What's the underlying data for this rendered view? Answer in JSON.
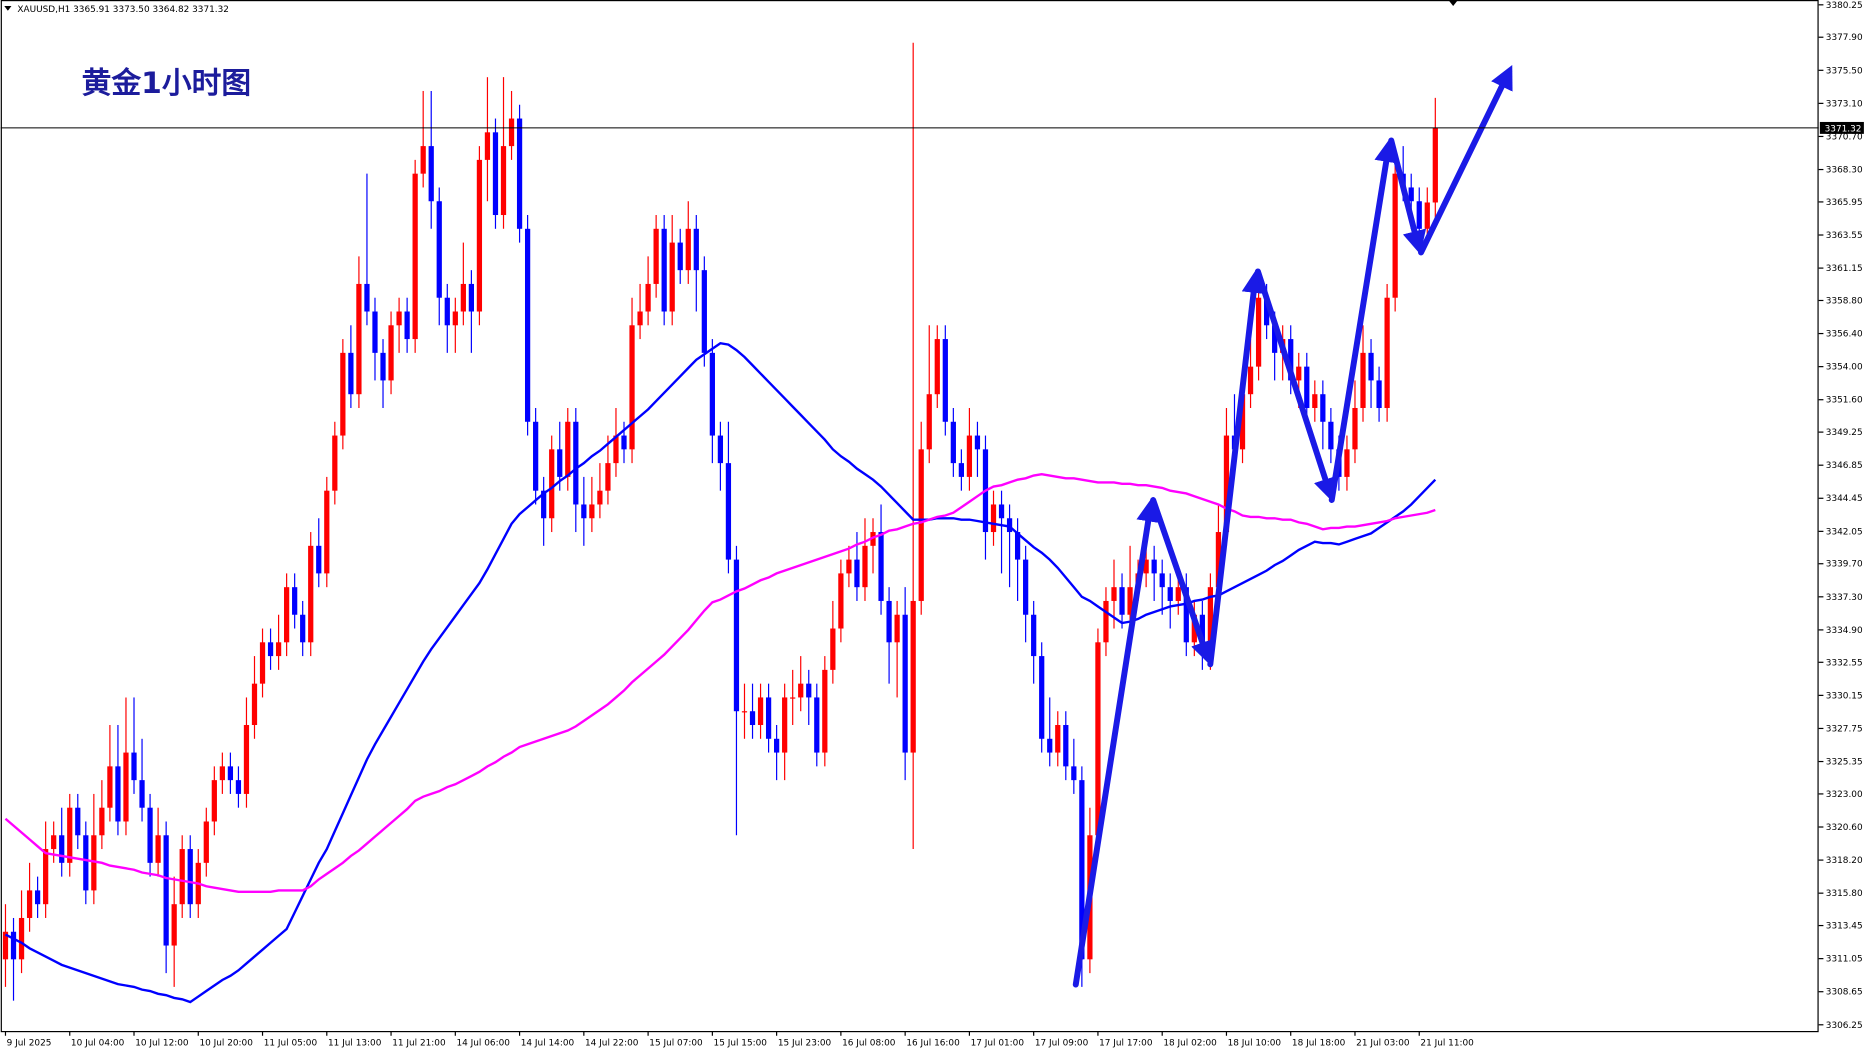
{
  "chart_data": {
    "type": "candlestick",
    "title": "黄金1小时图",
    "header": "XAUUSD,H1  3365.91 3373.50 3364.82 3371.32",
    "categories": [
      "9 Jul 2025",
      null,
      null,
      null,
      null,
      null,
      null,
      null,
      "10 Jul 04:00",
      null,
      null,
      null,
      null,
      null,
      null,
      null,
      "10 Jul 12:00",
      null,
      null,
      null,
      null,
      null,
      null,
      null,
      "10 Jul 20:00",
      null,
      null,
      null,
      null,
      null,
      null,
      null,
      "11 Jul 05:00",
      null,
      null,
      null,
      null,
      null,
      null,
      null,
      "11 Jul 13:00",
      null,
      null,
      null,
      null,
      null,
      null,
      null,
      "11 Jul 21:00",
      null,
      null,
      null,
      null,
      null,
      null,
      null,
      "14 Jul 06:00",
      null,
      null,
      null,
      null,
      null,
      null,
      null,
      "14 Jul 14:00",
      null,
      null,
      null,
      null,
      null,
      null,
      null,
      "14 Jul 22:00",
      null,
      null,
      null,
      null,
      null,
      null,
      null,
      "15 Jul 07:00",
      null,
      null,
      null,
      null,
      null,
      null,
      null,
      "15 Jul 15:00",
      null,
      null,
      null,
      null,
      null,
      null,
      null,
      "15 Jul 23:00",
      null,
      null,
      null,
      null,
      null,
      null,
      null,
      "16 Jul 08:00",
      null,
      null,
      null,
      null,
      null,
      null,
      null,
      "16 Jul 16:00",
      null,
      null,
      null,
      null,
      null,
      null,
      null,
      "17 Jul 01:00",
      null,
      null,
      null,
      null,
      null,
      null,
      null,
      "17 Jul 09:00",
      null,
      null,
      null,
      null,
      null,
      null,
      null,
      "17 Jul 17:00",
      null,
      null,
      null,
      null,
      null,
      null,
      null,
      "18 Jul 02:00",
      null,
      null,
      null,
      null,
      null,
      null,
      null,
      "18 Jul 10:00",
      null,
      null,
      null,
      null,
      null,
      null,
      null,
      "18 Jul 18:00",
      null,
      null,
      null,
      null,
      null,
      null,
      null,
      "21 Jul 03:00",
      null,
      null,
      null,
      null,
      null,
      null,
      null,
      "21 Jul 11:00",
      null,
      null
    ],
    "open": [
      3311,
      3313,
      3311,
      3314,
      3316,
      3315,
      3319,
      3320,
      3318,
      3322,
      3320,
      3316,
      3320,
      3322,
      3325,
      3321,
      3326,
      3324,
      3322,
      3318,
      3320,
      3312,
      3315,
      3319,
      3315,
      3318,
      3321,
      3324,
      3325,
      3324,
      3323,
      3328,
      3331,
      3334,
      3333,
      3334,
      3338,
      3336,
      3334,
      3341,
      3339,
      3345,
      3349,
      3355,
      3352,
      3360,
      3358,
      3355,
      3353,
      3357,
      3358,
      3356,
      3368,
      3370,
      3366,
      3359,
      3357,
      3358,
      3360,
      3358,
      3369,
      3371,
      3365,
      3370,
      3372,
      3364,
      3350,
      3345,
      3343,
      3348,
      3346,
      3350,
      3344,
      3343,
      3344,
      3345,
      3347,
      3349,
      3348,
      3357,
      3358,
      3360,
      3364,
      3358,
      3363,
      3361,
      3364,
      3361,
      3355,
      3349,
      3347,
      3340,
      3329,
      3329,
      3328,
      3330,
      3327,
      3326,
      3330,
      3330,
      3331,
      3330,
      3326,
      3332,
      3335,
      3339,
      3340,
      3338,
      3341,
      3342,
      3337,
      3334,
      3336,
      3326,
      3337,
      3348,
      3352,
      3356,
      3350,
      3347,
      3346,
      3349,
      3348,
      3342,
      3344,
      3343,
      3342,
      3340,
      3336,
      3333,
      3327,
      3326,
      3328,
      3325,
      3324,
      3311,
      3320,
      3334,
      3337,
      3338,
      3336,
      3338,
      3339,
      3340,
      3339,
      3338,
      3337,
      3338,
      3334,
      3336,
      3334,
      3338,
      3342,
      3349,
      3348,
      3352,
      3354,
      3359,
      3357,
      3355,
      3356,
      3353,
      3354,
      3351,
      3352,
      3350,
      3348,
      3346,
      3348,
      3351,
      3355,
      3353,
      3351,
      3359,
      3368,
      3367,
      3366,
      3364,
      3365.91
    ],
    "high": [
      3315,
      3314,
      3316,
      3318,
      3317,
      3321,
      3321,
      3322,
      3323,
      3323,
      3321,
      3323,
      3324,
      3328,
      3328,
      3330,
      3330,
      3327,
      3323,
      3322,
      3321,
      3317,
      3320,
      3320,
      3319,
      3322,
      3325,
      3326,
      3326,
      3325,
      3330,
      3333,
      3335,
      3335,
      3336,
      3339,
      3339,
      3337,
      3342,
      3343,
      3346,
      3350,
      3356,
      3357,
      3362,
      3368,
      3359,
      3356,
      3358,
      3359,
      3359,
      3369,
      3374,
      3374,
      3367,
      3360,
      3359,
      3363,
      3361,
      3370,
      3375,
      3372,
      3375,
      3374,
      3373,
      3365,
      3351,
      3346,
      3349,
      3350,
      3351,
      3351,
      3346,
      3346,
      3347,
      3349,
      3351,
      3350,
      3359,
      3360,
      3362,
      3365,
      3365,
      3365,
      3364,
      3366,
      3365,
      3362,
      3356,
      3350,
      3350,
      3341,
      3331,
      3331,
      3331,
      3331,
      3328,
      3331,
      3332,
      3333,
      3332,
      3331,
      3333,
      3337,
      3340,
      3341,
      3342,
      3343,
      3343,
      3344,
      3338,
      3337,
      3338,
      3377.5,
      3350,
      3357,
      3357,
      3357,
      3351,
      3348,
      3351,
      3350,
      3349,
      3345,
      3345,
      3344,
      3343,
      3341,
      3337,
      3334,
      3330,
      3329,
      3329,
      3327,
      3325,
      3322,
      3335,
      3338,
      3340,
      3339,
      3341,
      3340,
      3342,
      3341,
      3340,
      3339,
      3339,
      3339,
      3337,
      3337,
      3339,
      3344,
      3351,
      3352,
      3353,
      3356,
      3360,
      3360,
      3358,
      3357,
      3357,
      3355,
      3355,
      3353,
      3353,
      3351,
      3349,
      3349,
      3353,
      3357,
      3356,
      3354,
      3360,
      3369,
      3370,
      3368,
      3367,
      3367,
      3373.5
    ],
    "low": [
      3309,
      3308,
      3310,
      3313,
      3314,
      3314,
      3318,
      3317,
      3317,
      3319,
      3315,
      3315,
      3319,
      3321,
      3320,
      3320,
      3323,
      3321,
      3317,
      3317,
      3310,
      3309,
      3314,
      3314,
      3314,
      3317,
      3320,
      3323,
      3323,
      3322,
      3322,
      3327,
      3330,
      3332,
      3332,
      3333,
      3335,
      3333,
      3333,
      3338,
      3338,
      3344,
      3348,
      3351,
      3351,
      3357,
      3353,
      3351,
      3352,
      3355,
      3355,
      3355,
      3367,
      3364,
      3357,
      3355,
      3355,
      3357,
      3355,
      3357,
      3366,
      3364,
      3364,
      3369,
      3363,
      3349,
      3344,
      3341,
      3342,
      3345,
      3345,
      3342,
      3341,
      3342,
      3343,
      3344,
      3346,
      3347,
      3347,
      3356,
      3357,
      3359,
      3357,
      3357,
      3360,
      3360,
      3358,
      3354,
      3347,
      3345,
      3339,
      3320,
      3327,
      3327,
      3327,
      3326,
      3324,
      3324,
      3328,
      3329,
      3328,
      3325,
      3325,
      3331,
      3334,
      3338,
      3337,
      3337,
      3339,
      3336,
      3331,
      3330,
      3324,
      3319,
      3336,
      3347,
      3351,
      3349,
      3346,
      3345,
      3345,
      3346,
      3340,
      3341,
      3339,
      3338,
      3337,
      3334,
      3331,
      3326,
      3325,
      3325,
      3324,
      3323,
      3309,
      3310,
      3319,
      3333,
      3335,
      3335,
      3335,
      3337,
      3338,
      3337,
      3336,
      3335,
      3336,
      3333,
      3333,
      3332,
      3332,
      3337,
      3341,
      3347,
      3347,
      3351,
      3353,
      3356,
      3353,
      3353,
      3352,
      3351,
      3350,
      3350,
      3348,
      3347,
      3345,
      3345,
      3347,
      3350,
      3351,
      3350,
      3350,
      3358,
      3366,
      3364,
      3363,
      3363,
      3364.82
    ],
    "close": [
      3313,
      3311,
      3314,
      3316,
      3315,
      3319,
      3320,
      3318,
      3322,
      3320,
      3316,
      3320,
      3322,
      3325,
      3321,
      3326,
      3324,
      3322,
      3318,
      3320,
      3312,
      3315,
      3319,
      3315,
      3318,
      3321,
      3324,
      3325,
      3324,
      3323,
      3328,
      3331,
      3334,
      3333,
      3334,
      3338,
      3336,
      3334,
      3341,
      3339,
      3345,
      3349,
      3355,
      3352,
      3360,
      3358,
      3355,
      3353,
      3357,
      3358,
      3356,
      3368,
      3370,
      3366,
      3359,
      3357,
      3358,
      3360,
      3358,
      3369,
      3371,
      3365,
      3370,
      3372,
      3364,
      3350,
      3345,
      3343,
      3348,
      3346,
      3350,
      3344,
      3343,
      3344,
      3345,
      3347,
      3349,
      3348,
      3357,
      3358,
      3360,
      3364,
      3358,
      3363,
      3361,
      3364,
      3361,
      3355,
      3349,
      3347,
      3340,
      3329,
      3329,
      3328,
      3330,
      3327,
      3326,
      3330,
      3330,
      3331,
      3330,
      3326,
      3332,
      3335,
      3339,
      3340,
      3338,
      3341,
      3342,
      3337,
      3334,
      3336,
      3326,
      3337,
      3348,
      3352,
      3356,
      3350,
      3347,
      3346,
      3349,
      3348,
      3342,
      3344,
      3343,
      3342,
      3340,
      3336,
      3333,
      3327,
      3326,
      3328,
      3325,
      3324,
      3311,
      3320,
      3334,
      3337,
      3338,
      3336,
      3338,
      3339,
      3340,
      3339,
      3338,
      3337,
      3338,
      3334,
      3336,
      3334,
      3338,
      3342,
      3349,
      3348,
      3352,
      3354,
      3359,
      3357,
      3355,
      3356,
      3353,
      3354,
      3351,
      3352,
      3350,
      3348,
      3346,
      3348,
      3351,
      3355,
      3353,
      3351,
      3359,
      3368,
      3367,
      3366,
      3364,
      3365.91,
      3371.32
    ],
    "up_color": "#ff0000",
    "down_color": "#0000ff",
    "series": [
      {
        "type": "line",
        "color": "#0000ff",
        "values": [
          3312.8,
          3312.5,
          3312.2,
          3311.8,
          3311.5,
          3311.2,
          3310.9,
          3310.6,
          3310.4,
          3310.2,
          3310.0,
          3309.8,
          3309.6,
          3309.4,
          3309.2,
          3309.1,
          3309.0,
          3308.8,
          3308.7,
          3308.5,
          3308.4,
          3308.2,
          3308.1,
          3307.9,
          3308.3,
          3308.7,
          3309.1,
          3309.5,
          3309.8,
          3310.2,
          3310.7,
          3311.2,
          3311.7,
          3312.2,
          3312.7,
          3313.2,
          3314.4,
          3315.6,
          3316.8,
          3318.0,
          3319.0,
          3320.3,
          3321.6,
          3322.9,
          3324.2,
          3325.5,
          3326.6,
          3327.6,
          3328.6,
          3329.6,
          3330.6,
          3331.6,
          3332.6,
          3333.5,
          3334.3,
          3335.1,
          3335.9,
          3336.7,
          3337.5,
          3338.3,
          3339.3,
          3340.4,
          3341.5,
          3342.6,
          3343.3,
          3343.8,
          3344.3,
          3344.8,
          3345.2,
          3345.7,
          3346.1,
          3346.6,
          3347.0,
          3347.5,
          3347.9,
          3348.4,
          3348.9,
          3349.4,
          3349.9,
          3350.4,
          3350.9,
          3351.5,
          3352.1,
          3352.7,
          3353.3,
          3353.9,
          3354.5,
          3354.9,
          3355.3,
          3355.7,
          3355.6,
          3355.2,
          3354.7,
          3354.1,
          3353.5,
          3352.9,
          3352.3,
          3351.7,
          3351.1,
          3350.5,
          3349.9,
          3349.3,
          3348.7,
          3348.0,
          3347.5,
          3347.1,
          3346.6,
          3346.2,
          3345.8,
          3345.3,
          3344.7,
          3344.1,
          3343.5,
          3342.9,
          3342.9,
          3342.9,
          3343.0,
          3343.0,
          3343.0,
          3342.9,
          3342.9,
          3342.8,
          3342.7,
          3342.6,
          3342.5,
          3342.4,
          3341.9,
          3341.4,
          3340.9,
          3340.5,
          3340.0,
          3339.4,
          3338.7,
          3338.0,
          3337.3,
          3337.0,
          3336.6,
          3336.2,
          3335.8,
          3335.4,
          3335.5,
          3335.7,
          3336.0,
          3336.2,
          3336.4,
          3336.6,
          3336.7,
          3336.8,
          3337.0,
          3337.1,
          3337.3,
          3337.4,
          3337.7,
          3338.0,
          3338.3,
          3338.6,
          3338.9,
          3339.2,
          3339.6,
          3339.9,
          3340.3,
          3340.7,
          3341.0,
          3341.3,
          3341.2,
          3341.2,
          3341.1,
          3341.3,
          3341.5,
          3341.7,
          3341.9,
          3342.3,
          3342.7,
          3343.1,
          3343.5,
          3344.0,
          3344.6,
          3345.2,
          3345.8
        ]
      },
      {
        "type": "line",
        "color": "#ff00ff",
        "values": [
          3321.2,
          3320.7,
          3320.2,
          3319.7,
          3319.2,
          3318.7,
          3318.6,
          3318.5,
          3318.4,
          3318.3,
          3318.2,
          3318.1,
          3318.0,
          3317.8,
          3317.7,
          3317.6,
          3317.5,
          3317.3,
          3317.2,
          3317.1,
          3316.9,
          3316.8,
          3316.7,
          3316.6,
          3316.5,
          3316.3,
          3316.2,
          3316.1,
          3316.0,
          3315.9,
          3315.9,
          3315.9,
          3315.9,
          3315.9,
          3316.0,
          3316.0,
          3316.0,
          3316.0,
          3316.3,
          3316.8,
          3317.2,
          3317.6,
          3318.0,
          3318.5,
          3318.9,
          3319.4,
          3319.9,
          3320.4,
          3320.9,
          3321.4,
          3321.9,
          3322.5,
          3322.8,
          3323.0,
          3323.2,
          3323.5,
          3323.7,
          3324.0,
          3324.3,
          3324.6,
          3325.0,
          3325.3,
          3325.7,
          3326.0,
          3326.4,
          3326.6,
          3326.8,
          3327.0,
          3327.2,
          3327.4,
          3327.6,
          3327.9,
          3328.3,
          3328.7,
          3329.1,
          3329.5,
          3330.0,
          3330.5,
          3331.1,
          3331.6,
          3332.1,
          3332.6,
          3333.1,
          3333.7,
          3334.3,
          3334.9,
          3335.6,
          3336.3,
          3336.9,
          3337.1,
          3337.4,
          3337.7,
          3337.9,
          3338.2,
          3338.5,
          3338.7,
          3339.0,
          3339.2,
          3339.4,
          3339.6,
          3339.8,
          3340.0,
          3340.2,
          3340.4,
          3340.6,
          3340.8,
          3341.1,
          3341.3,
          3341.6,
          3341.8,
          3342.1,
          3342.2,
          3342.4,
          3342.6,
          3342.7,
          3342.9,
          3343.1,
          3343.2,
          3343.4,
          3343.8,
          3344.2,
          3344.6,
          3345.0,
          3345.3,
          3345.4,
          3345.6,
          3345.8,
          3345.9,
          3346.1,
          3346.2,
          3346.1,
          3346.0,
          3345.9,
          3345.9,
          3345.8,
          3345.7,
          3345.6,
          3345.6,
          3345.6,
          3345.5,
          3345.5,
          3345.4,
          3345.4,
          3345.3,
          3345.2,
          3345.0,
          3344.9,
          3344.8,
          3344.6,
          3344.4,
          3344.2,
          3344.0,
          3343.7,
          3343.5,
          3343.2,
          3343.1,
          3343.1,
          3343.0,
          3343.0,
          3342.9,
          3342.9,
          3342.7,
          3342.6,
          3342.4,
          3342.2,
          3342.3,
          3342.3,
          3342.4,
          3342.4,
          3342.5,
          3342.6,
          3342.7,
          3342.8,
          3343.0,
          3343.1,
          3343.2,
          3343.3,
          3343.4,
          3343.6
        ]
      }
    ],
    "ylim": [
      3305.8,
      3380.6
    ],
    "yticks": [
      3380.25,
      {
        "value": 3377.9,
        "label": "3377.90"
      },
      {
        "value": 3375.5,
        "label": "3375.50"
      },
      {
        "value": 3373.1,
        "label": "3373.10"
      },
      {
        "value": 3370.7,
        "label": "3370.70"
      },
      {
        "value": 3368.3,
        "label": "3368.30"
      },
      3365.95,
      3363.55,
      3361.15,
      {
        "value": 3358.8,
        "label": "3358.80"
      },
      {
        "value": 3356.4,
        "label": "3356.40"
      },
      {
        "value": 3354,
        "label": "3354.00"
      },
      {
        "value": 3351.6,
        "label": "3351.60"
      },
      3349.25,
      3346.85,
      3344.45,
      3342.05,
      {
        "value": 3339.7,
        "label": "3339.70"
      },
      {
        "value": 3337.3,
        "label": "3337.30"
      },
      {
        "value": 3334.9,
        "label": "3334.90"
      },
      3332.55,
      3330.15,
      3327.75,
      3325.35,
      {
        "value": 3323,
        "label": "3323.00"
      },
      {
        "value": 3320.6,
        "label": "3320.60"
      },
      {
        "value": 3318.2,
        "label": "3318.20"
      },
      {
        "value": 3315.8,
        "label": "3315.80"
      },
      3313.45,
      3311.05,
      3308.65,
      3306.25
    ],
    "current_price": 3371.32,
    "grid": false
  }
}
